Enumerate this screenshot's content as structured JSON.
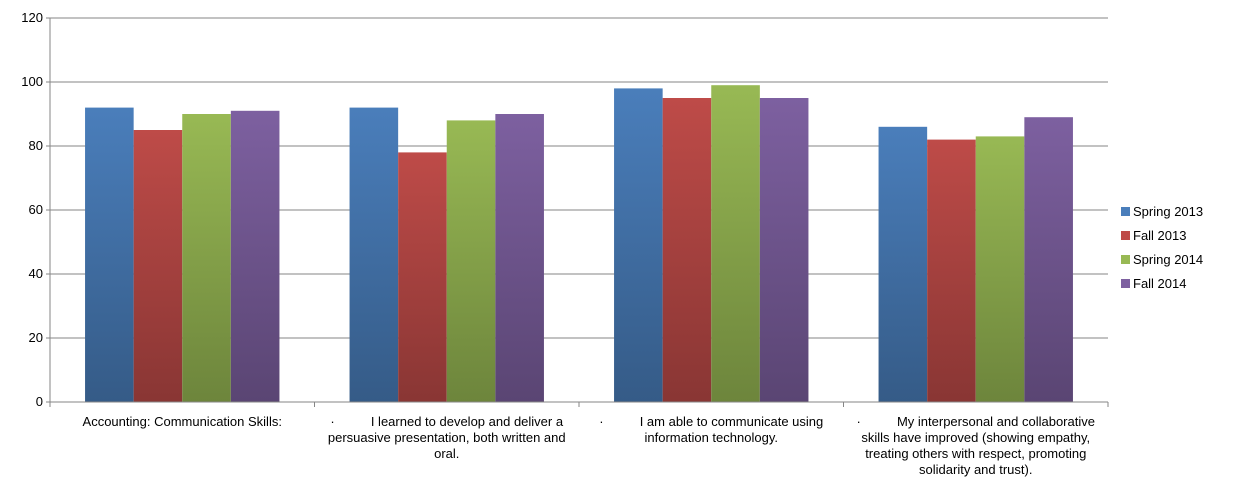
{
  "chart_data": {
    "type": "bar",
    "title": "",
    "xlabel": "",
    "ylabel": "",
    "ylim": [
      0,
      120
    ],
    "yticks": [
      0,
      20,
      40,
      60,
      80,
      100,
      120
    ],
    "grid": true,
    "legend_position": "right",
    "categories": [
      "Accounting: Communication Skills:",
      "·          I learned to develop and deliver a persuasive presentation, both written and oral.",
      "·          I am able to communicate using information technology.",
      "·          My interpersonal and collaborative skills have improved (showing empathy, treating others with respect, promoting solidarity and trust)."
    ],
    "series": [
      {
        "name": "Spring 2013",
        "color": "#4A7EBB",
        "values": [
          92,
          92,
          98,
          86
        ]
      },
      {
        "name": "Fall 2013",
        "color": "#BE4B48",
        "values": [
          85,
          78,
          95,
          82
        ]
      },
      {
        "name": "Spring 2014",
        "color": "#98B954",
        "values": [
          90,
          88,
          99,
          83
        ]
      },
      {
        "name": "Fall 2014",
        "color": "#7D60A0",
        "values": [
          91,
          90,
          95,
          89
        ]
      }
    ]
  }
}
